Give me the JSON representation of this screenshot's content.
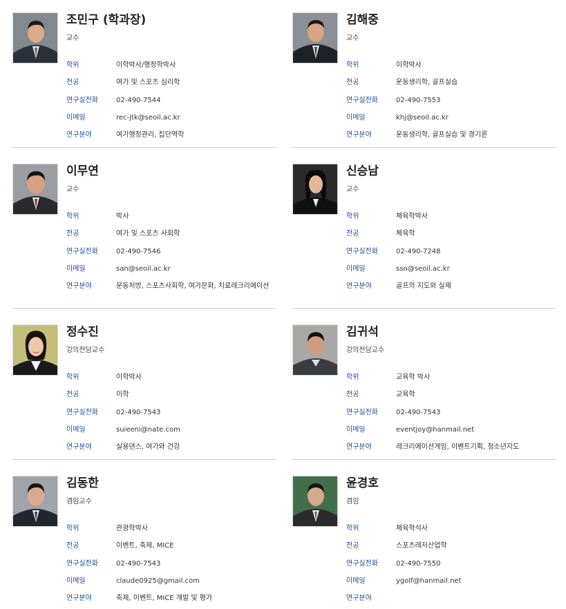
{
  "labels": {
    "degree": "학위",
    "major": "전공",
    "lab_phone": "연구실전화",
    "email": "이메일",
    "research": "연구분야"
  },
  "professors": [
    {
      "name": "조민구 (학과장)",
      "position": "교수",
      "degree": "이학박사/행정학박사",
      "major": "여가 및 스포츠 심리학",
      "lab_phone": "02-490-7544",
      "email": "rec-jtk@seoil.ac.kr",
      "research": "여가행정관리, 집단역학"
    },
    {
      "name": "김해중",
      "position": "교수",
      "degree": "이학박사",
      "major": "운동생리학, 골프실습",
      "lab_phone": "02-490-7553",
      "email": "khj@seoil.ac.kr",
      "research": "운동생리학, 골프실습 및 경기론"
    },
    {
      "name": "이무연",
      "position": "교수",
      "degree": "박사",
      "major": "여가 및 스포츠 사회학",
      "lab_phone": "02-490-7546",
      "email": "san@seoil.ac.kr",
      "research": "운동처방, 스포츠사회학, 여가문화, 치료레크리에이션"
    },
    {
      "name": "신승남",
      "position": "교수",
      "degree": "체육학박사",
      "major": "체육학",
      "lab_phone": "02-490-7248",
      "email": "ssn@seoil.ac.kr",
      "research": "골프의 지도와 실제"
    },
    {
      "name": "정수진",
      "position": "강의전담교수",
      "degree": "이학박사",
      "major": "이학",
      "lab_phone": "02-490-7543",
      "email": "suieeni@nate.com",
      "research": "실용댄스, 여가와 건강"
    },
    {
      "name": "김귀석",
      "position": "강의전담교수",
      "degree": "교육학 박사",
      "major": "교육학",
      "lab_phone": "02-490-7543",
      "email": "eventjoy@hanmail.net",
      "research": "레크리에이션게임, 이벤트기획, 청소년지도"
    },
    {
      "name": "김동한",
      "position": "겸임교수",
      "degree": "관광학박사",
      "major": "이벤트, 축제, MICE",
      "lab_phone": "02-490-7543",
      "email": "claude0925@gmail.com",
      "research": "축제, 이벤트, MICE 개발 및 평가"
    },
    {
      "name": "윤경호",
      "position": "겸임",
      "degree": "체육학석사",
      "major": "스포츠레저산업학",
      "lab_phone": "02-490-7550",
      "email": "ygolf@hanmail.net",
      "research": ""
    }
  ],
  "colors": {
    "label": "#1c4e96",
    "divider": "#cfcfcf",
    "name": "#222222"
  }
}
